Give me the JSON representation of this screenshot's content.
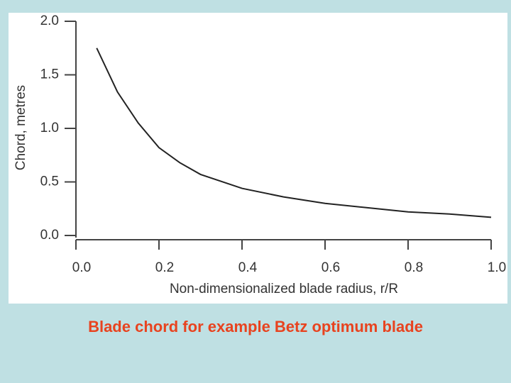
{
  "chart_data": {
    "type": "line",
    "title": "Blade chord for example Betz optimum blade",
    "xlabel": "Non-dimensionalized blade radius, r/R",
    "ylabel": "Chord, metres",
    "x": [
      0.05,
      0.1,
      0.15,
      0.2,
      0.25,
      0.3,
      0.4,
      0.5,
      0.6,
      0.7,
      0.8,
      0.9,
      1.0
    ],
    "series": [
      {
        "name": "Chord",
        "color": "#222222",
        "values": [
          1.75,
          1.34,
          1.05,
          0.82,
          0.68,
          0.57,
          0.44,
          0.36,
          0.3,
          0.26,
          0.22,
          0.2,
          0.17
        ]
      }
    ],
    "xlim": [
      0,
      1
    ],
    "ylim": [
      0,
      2
    ],
    "xticks": [
      {
        "value": 0,
        "label": "0.0"
      },
      0.2,
      0.4,
      0.6,
      0.8,
      {
        "value": 1,
        "label": "1.0"
      }
    ],
    "yticks": [
      {
        "value": 0,
        "label": "0.0"
      },
      0.5,
      {
        "value": 1,
        "label": "1.0"
      },
      1.5,
      {
        "value": 2,
        "label": "2.0"
      }
    ]
  }
}
